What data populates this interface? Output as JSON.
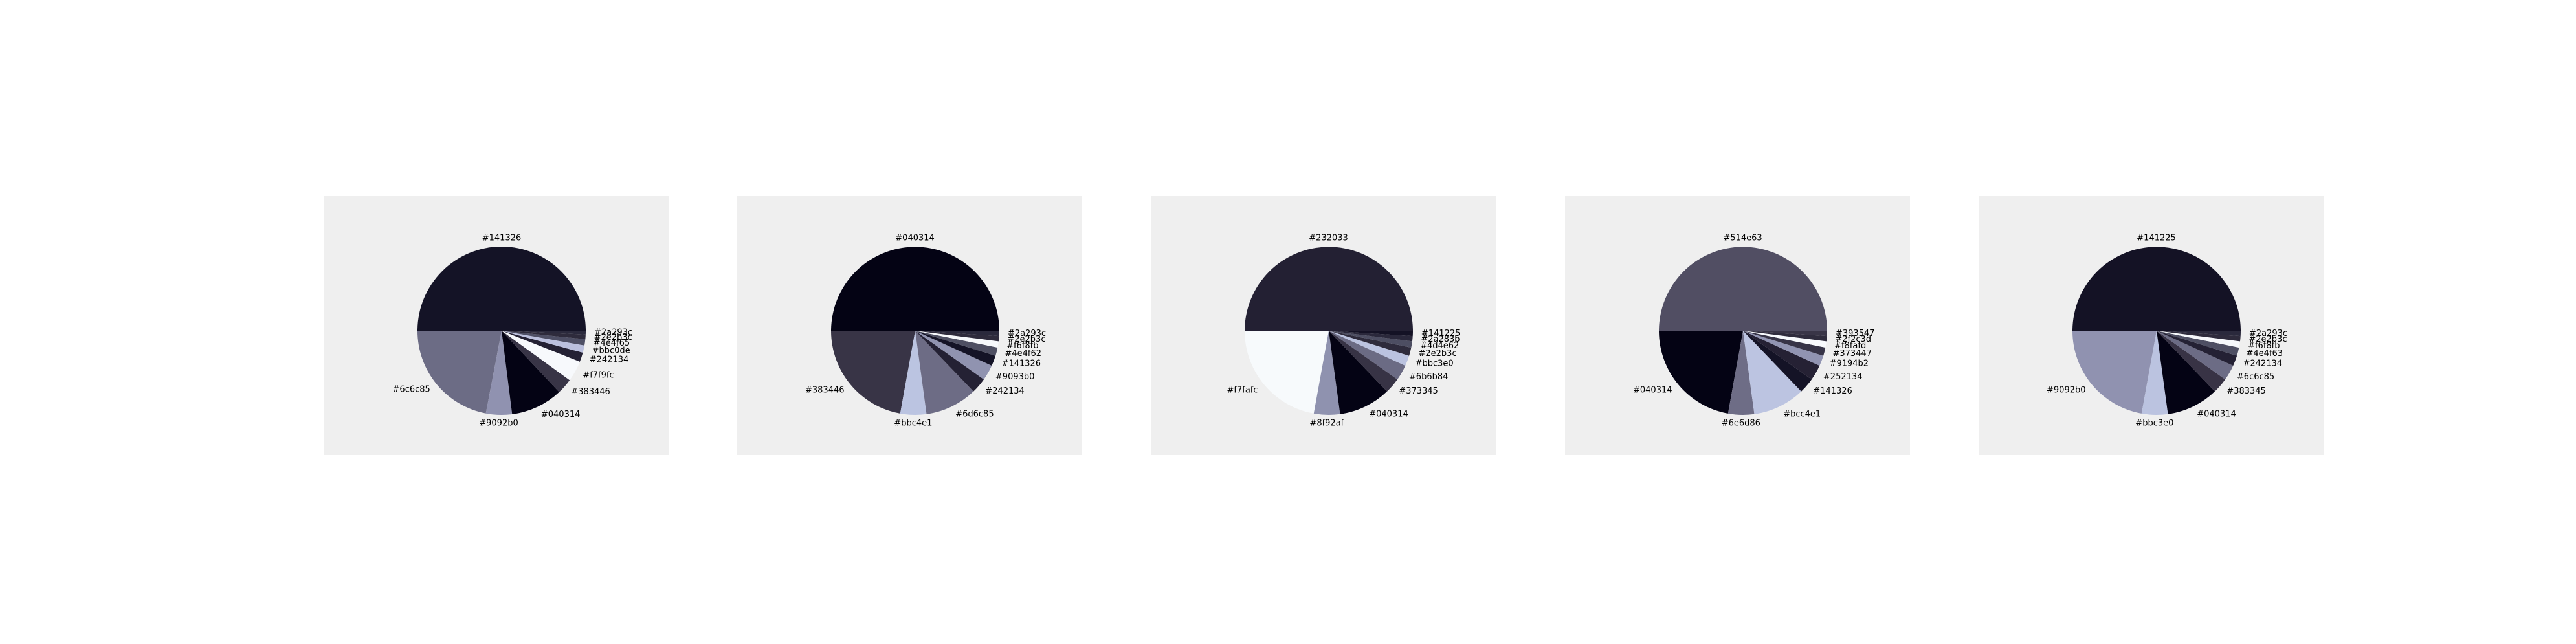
{
  "chart_data": [
    {
      "type": "pie",
      "title": "",
      "slices": [
        {
          "label": "#141326",
          "value": 50.0,
          "color": "#141326"
        },
        {
          "label": "#6c6c85",
          "value": 22.0,
          "color": "#6c6c85"
        },
        {
          "label": "#9092b0",
          "value": 5.0,
          "color": "#9092b0"
        },
        {
          "label": "#040314",
          "value": 10.0,
          "color": "#040314"
        },
        {
          "label": "#383446",
          "value": 3.0,
          "color": "#383446"
        },
        {
          "label": "#f7f9fc",
          "value": 4.0,
          "color": "#f7f9fc"
        },
        {
          "label": "#242134",
          "value": 1.8,
          "color": "#242134"
        },
        {
          "label": "#bbc0de",
          "value": 1.4,
          "color": "#bbc0de"
        },
        {
          "label": "#4e4f65",
          "value": 1.2,
          "color": "#4e4f65"
        },
        {
          "label": "#2e2b3c",
          "value": 0.9,
          "color": "#2e2b3c"
        },
        {
          "label": "#2a293c",
          "value": 0.7,
          "color": "#2a293c"
        }
      ]
    },
    {
      "type": "pie",
      "title": "",
      "slices": [
        {
          "label": "#040314",
          "value": 50.0,
          "color": "#040314"
        },
        {
          "label": "#383446",
          "value": 22.0,
          "color": "#383446"
        },
        {
          "label": "#bbc4e1",
          "value": 5.0,
          "color": "#bbc4e1"
        },
        {
          "label": "#6d6c85",
          "value": 10.0,
          "color": "#6d6c85"
        },
        {
          "label": "#242134",
          "value": 3.0,
          "color": "#242134"
        },
        {
          "label": "#9093b0",
          "value": 3.0,
          "color": "#9093b0"
        },
        {
          "label": "#141326",
          "value": 2.0,
          "color": "#141326"
        },
        {
          "label": "#4e4f62",
          "value": 1.6,
          "color": "#4e4f62"
        },
        {
          "label": "#f6f8fb",
          "value": 1.2,
          "color": "#f6f8fb"
        },
        {
          "label": "#2e2b3c",
          "value": 1.0,
          "color": "#2e2b3c"
        },
        {
          "label": "#2a293c",
          "value": 1.0,
          "color": "#2a293c"
        }
      ]
    },
    {
      "type": "pie",
      "title": "",
      "slices": [
        {
          "label": "#232033",
          "value": 50.0,
          "color": "#232033"
        },
        {
          "label": "#f7fafc",
          "value": 22.0,
          "color": "#f7fafc"
        },
        {
          "label": "#8f92af",
          "value": 5.0,
          "color": "#8f92af"
        },
        {
          "label": "#040314",
          "value": 10.0,
          "color": "#040314"
        },
        {
          "label": "#373345",
          "value": 3.0,
          "color": "#373345"
        },
        {
          "label": "#6b6b84",
          "value": 3.0,
          "color": "#6b6b84"
        },
        {
          "label": "#bbc3e0",
          "value": 2.0,
          "color": "#bbc3e0"
        },
        {
          "label": "#2e2b3c",
          "value": 1.6,
          "color": "#2e2b3c"
        },
        {
          "label": "#4d4e62",
          "value": 1.2,
          "color": "#4d4e62"
        },
        {
          "label": "#2a283b",
          "value": 1.0,
          "color": "#2a283b"
        },
        {
          "label": "#141225",
          "value": 1.0,
          "color": "#141225"
        }
      ]
    },
    {
      "type": "pie",
      "title": "",
      "slices": [
        {
          "label": "#514e63",
          "value": 50.0,
          "color": "#514e63"
        },
        {
          "label": "#040314",
          "value": 22.0,
          "color": "#040314"
        },
        {
          "label": "#6e6d86",
          "value": 5.0,
          "color": "#6e6d86"
        },
        {
          "label": "#bcc4e1",
          "value": 10.0,
          "color": "#bcc4e1"
        },
        {
          "label": "#141326",
          "value": 3.0,
          "color": "#141326"
        },
        {
          "label": "#252134",
          "value": 3.0,
          "color": "#252134"
        },
        {
          "label": "#9194b2",
          "value": 2.0,
          "color": "#9194b2"
        },
        {
          "label": "#373447",
          "value": 1.6,
          "color": "#373447"
        },
        {
          "label": "#f8fafd",
          "value": 1.2,
          "color": "#f8fafd"
        },
        {
          "label": "#2f2c3d",
          "value": 1.0,
          "color": "#2f2c3d"
        },
        {
          "label": "#393547",
          "value": 1.0,
          "color": "#393547"
        }
      ]
    },
    {
      "type": "pie",
      "title": "",
      "slices": [
        {
          "label": "#141225",
          "value": 50.0,
          "color": "#141225"
        },
        {
          "label": "#9092b0",
          "value": 22.0,
          "color": "#9092b0"
        },
        {
          "label": "#bbc3e0",
          "value": 5.0,
          "color": "#bbc3e0"
        },
        {
          "label": "#040314",
          "value": 10.0,
          "color": "#040314"
        },
        {
          "label": "#383345",
          "value": 3.0,
          "color": "#383345"
        },
        {
          "label": "#6c6c85",
          "value": 3.0,
          "color": "#6c6c85"
        },
        {
          "label": "#242134",
          "value": 2.0,
          "color": "#242134"
        },
        {
          "label": "#4e4f63",
          "value": 1.6,
          "color": "#4e4f63"
        },
        {
          "label": "#f6f8fb",
          "value": 1.2,
          "color": "#f6f8fb"
        },
        {
          "label": "#2e2b3c",
          "value": 1.0,
          "color": "#2e2b3c"
        },
        {
          "label": "#2a293c",
          "value": 1.0,
          "color": "#2a293c"
        }
      ]
    }
  ]
}
